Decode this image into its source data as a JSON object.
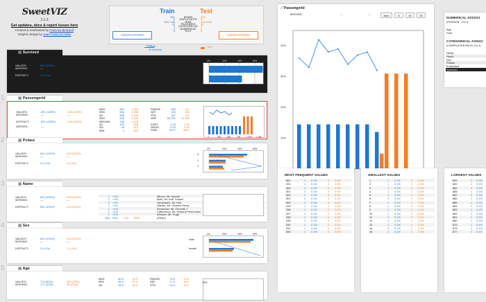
{
  "header": {
    "logo_text": "SweetVIZ",
    "version": "2.1.3",
    "updates_link": "Get updates, docs & report issues here",
    "credit_line1": "Created & maintained by",
    "credit_author": "Francois Bertrand",
    "credit_line2": "Graphic design by",
    "credit_designer": "Jean-Francois Hains"
  },
  "summary": {
    "train_title": "Train",
    "test_title": "Test",
    "rows": [
      {
        "train": "891",
        "label": "ROWS",
        "test": "418"
      },
      {
        "train": "0",
        "label": "DUPLICATES",
        "test": "0"
      },
      {
        "train": "329.7 kB",
        "label": "RAM",
        "test": "151.8 kB"
      },
      {
        "train": "12",
        "label": "FEATURES",
        "test": "11"
      },
      {
        "train": "5",
        "label": "CATEGORICAL",
        "test": "5"
      },
      {
        "train": "4",
        "label": "NUMERICAL",
        "test": "3"
      },
      {
        "train": "3",
        "label": "TEXT",
        "test": "3"
      }
    ],
    "assoc_button_train": "ASSOCIATIONS",
    "assoc_button_test": "ASSOCIATIONS",
    "legend_train": "Train",
    "legend_survived": "% Survived",
    "legend_test": "Test"
  },
  "colors": {
    "train": "#1f77d0",
    "test": "#f07e2a",
    "dark": "#1c1c1c"
  },
  "features": [
    {
      "index": "",
      "icon": "target-icon",
      "name": "Survived",
      "values_train": "891 (100%)",
      "values_test": "",
      "missing": "---",
      "distinct": "2 (<1%)",
      "chart": {
        "ticks": [
          "0%",
          "20%",
          "40%",
          "60%"
        ],
        "bars_train": [
          0.62,
          0.38
        ],
        "bars_test": []
      }
    },
    {
      "index": "1",
      "icon": "numeric-icon",
      "name": "PassengerId",
      "values_train": "891 (100%)",
      "values_test": "418 (100%)",
      "missing_train": "---",
      "missing_test": "---",
      "distinct_train": "891 (100%)",
      "distinct_test": "418 (100%)",
      "zeroes": "---",
      "stats_left": [
        {
          "k": "MAX",
          "t": "891",
          "s": "1,309"
        },
        {
          "k": "95%",
          "t": "846",
          "s": "1,288"
        },
        {
          "k": "Q3",
          "t": "668",
          "s": "1,205"
        },
        {
          "k": "AVG",
          "t": "446",
          "s": "1,100"
        },
        {
          "k": "MEDIAN",
          "t": "446",
          "s": "1,100"
        },
        {
          "k": "Q1",
          "t": "224",
          "s": "996"
        },
        {
          "k": "5%",
          "t": "45",
          "s": "913"
        },
        {
          "k": "MIN",
          "t": "1",
          "s": "892"
        }
      ],
      "stats_right": [
        {
          "k": "RANGE",
          "t": "890",
          "s": "417"
        },
        {
          "k": "IQR",
          "t": "445",
          "s": "208"
        },
        {
          "k": "STD",
          "t": "257",
          "s": "121"
        },
        {
          "k": "VAR",
          "t": "66,231",
          "s": "14,595"
        },
        {
          "k": "KURT.",
          "t": "-1.20",
          "s": "-1.20"
        },
        {
          "k": "SKEW",
          "t": "0.00",
          "s": "0.00"
        },
        {
          "k": "SUM",
          "t": "397K",
          "s": "460K"
        }
      ],
      "chart_ticks": [
        "0",
        "250",
        "500",
        "750",
        "1,000",
        "1,250"
      ]
    },
    {
      "index": "2",
      "icon": "category-icon",
      "name": "Pclass",
      "values_train": "891 (100%)",
      "values_test": "418 (100%)",
      "missing_train": "---",
      "missing_test": "---",
      "distinct_train": "3 (<1%)",
      "distinct_test": "3 (<1%)",
      "chart_ticks": [
        "0%",
        "20%",
        "40%",
        "60%"
      ],
      "categories": [
        "3",
        "1",
        "2"
      ]
    },
    {
      "index": "3",
      "icon": "text-icon",
      "name": "Name",
      "values_train": "891 (100%)",
      "values_test": "418 (100%)",
      "missing_train": "---",
      "missing_test": "---",
      "distinct_train": "891 (100%)",
      "distinct_test": "418 (100%)",
      "top_values": [
        {
          "n": "1",
          "p": "<1%",
          "name": "Minyor, Mr. August"
        },
        {
          "n": "1",
          "p": "<1%",
          "name": "Beth, Mr. Karl Trowell"
        },
        {
          "n": "1",
          "p": "<1%",
          "name": "Johanssen, Mr. Erik"
        },
        {
          "n": "1",
          "p": "<1%",
          "name": "Davies, Mr. Charles Henry"
        },
        {
          "n": "1",
          "p": "<1%",
          "name": "Kingsman, Mr. Thomas J"
        },
        {
          "n": "1",
          "p": "<1%",
          "name": "Cattermoul, Mr. Edward Pennington"
        },
        {
          "n": "1",
          "p": "<1%",
          "name": "Wooder, Mr. Hugh"
        },
        {
          "n": "884",
          "p": "99%",
          "test_n": "418",
          "test_p": "100%",
          "name": "(Other)"
        }
      ]
    },
    {
      "index": "4",
      "icon": "category-icon",
      "name": "Sex",
      "values_train": "891 (100%)",
      "values_test": "418 (100%)",
      "missing_train": "---",
      "missing_test": "---",
      "distinct_train": "2 (<1%)",
      "distinct_test": "2 (<1%)",
      "chart_ticks": [
        "0%",
        "20%",
        "40%",
        "60%"
      ],
      "categories": [
        "male",
        "female"
      ]
    },
    {
      "index": "5",
      "icon": "numeric-icon",
      "name": "Age",
      "values_train": "714 (80%)",
      "values_test": "332 (79%)",
      "missing_train": "177 (20%)",
      "missing_test": "86 (21%)",
      "stats_left": [
        {
          "k": "MAX",
          "t": "80.0",
          "s": "76.0"
        },
        {
          "k": "95%",
          "t": "56.0",
          "s": "57.0"
        },
        {
          "k": "Q3",
          "t": "38.0",
          "s": "39.0"
        }
      ],
      "stats_right": [
        {
          "k": "RANGE",
          "t": "79.6",
          "s": "75.8"
        },
        {
          "k": "IQR",
          "t": "17.9",
          "s": "18.0"
        },
        {
          "k": "STD",
          "t": "14.5",
          "s": "14.2"
        }
      ],
      "chart_first_tick": "60%"
    }
  ],
  "detail": {
    "title": "PassengerId",
    "missing_label": "MISSING:",
    "missing_train": "---",
    "missing_test": "---",
    "bin_buttons": [
      "Auto",
      "5",
      "15",
      "30"
    ],
    "chart_data": {
      "type": "bar",
      "x_ticks": [
        "0",
        "250",
        "500",
        "750",
        "1,000",
        "1,250"
      ],
      "y_ticks": [
        "40%",
        "30%",
        "20%",
        "10%"
      ],
      "ylim": [
        0,
        45
      ],
      "train_bars": [
        14.5,
        14.5,
        14.5,
        14.5,
        14.5,
        14.5,
        14.5,
        14.5,
        12.0
      ],
      "test_bars": [
        null,
        null,
        null,
        null,
        null,
        null,
        null,
        null,
        5.0,
        31.0,
        31.0,
        31.0
      ],
      "survived_line": [
        36,
        33,
        42,
        38,
        39,
        34,
        37,
        38,
        32
      ]
    }
  },
  "assoc_panel": {
    "title1": "NUMERICAL ASSOCI",
    "sub1": "(PEARSON, -1 to 1)",
    "items1": [
      "Age",
      "Fare"
    ],
    "title2": "CATEGORICAL ASSOC",
    "sub2": "(CORRELATION RATIO, 0 to 1)",
    "items2": [
      "SibSp",
      "Parch",
      "Sex",
      "Pclass",
      "Embarked",
      "Survived"
    ]
  },
  "tables": [
    {
      "title": "MOST FREQUENT VALUES",
      "rows": [
        {
          "v": "891",
          "t": "1",
          "tp": "0.1%",
          "s": "0",
          "sp": "0.0%"
        },
        {
          "v": "293",
          "t": "1",
          "tp": "0.1%",
          "s": "0",
          "sp": "0.0%"
        },
        {
          "v": "304",
          "t": "1",
          "tp": "0.1%",
          "s": "0",
          "sp": "0.0%"
        },
        {
          "v": "303",
          "t": "1",
          "tp": "0.1%",
          "s": "0",
          "sp": "0.0%"
        },
        {
          "v": "302",
          "t": "1",
          "tp": "0.1%",
          "s": "0",
          "sp": "0.0%"
        },
        {
          "v": "301",
          "t": "1",
          "tp": "0.1%",
          "s": "0",
          "sp": "0.0%"
        },
        {
          "v": "300",
          "t": "1",
          "tp": "0.1%",
          "s": "0",
          "sp": "0.0%"
        },
        {
          "v": "299",
          "t": "1",
          "tp": "0.1%",
          "s": "0",
          "sp": "0.0%"
        },
        {
          "v": "298",
          "t": "1",
          "tp": "0.1%",
          "s": "0",
          "sp": "0.0%"
        },
        {
          "v": "297",
          "t": "1",
          "tp": "0.1%",
          "s": "0",
          "sp": "0.0%"
        },
        {
          "v": "296",
          "t": "1",
          "tp": "0.1%",
          "s": "0",
          "sp": "0.0%"
        },
        {
          "v": "295",
          "t": "1",
          "tp": "0.1%",
          "s": "0",
          "sp": "0.0%"
        },
        {
          "v": "294",
          "t": "1",
          "tp": "0.1%",
          "s": "0",
          "sp": "0.0%"
        },
        {
          "v": "292",
          "t": "1",
          "tp": "0.1%",
          "s": "0",
          "sp": "0.0%"
        },
        {
          "v": "306",
          "t": "1",
          "tp": "0.1%",
          "s": "0",
          "sp": "0.0%"
        }
      ]
    },
    {
      "title": "SMALLEST VALUES",
      "rows": [
        {
          "v": "1",
          "t": "1",
          "tp": "0.1%",
          "s": "0",
          "sp": "0.0%"
        },
        {
          "v": "2",
          "t": "1",
          "tp": "0.1%",
          "s": "0",
          "sp": "0.0%"
        },
        {
          "v": "3",
          "t": "1",
          "tp": "0.1%",
          "s": "0",
          "sp": "0.0%"
        },
        {
          "v": "4",
          "t": "1",
          "tp": "0.1%",
          "s": "0",
          "sp": "0.0%"
        },
        {
          "v": "5",
          "t": "1",
          "tp": "0.1%",
          "s": "0",
          "sp": "0.0%"
        },
        {
          "v": "6",
          "t": "1",
          "tp": "0.1%",
          "s": "0",
          "sp": "0.0%"
        },
        {
          "v": "7",
          "t": "1",
          "tp": "0.1%",
          "s": "0",
          "sp": "0.0%"
        },
        {
          "v": "8",
          "t": "1",
          "tp": "0.1%",
          "s": "0",
          "sp": "0.0%"
        },
        {
          "v": "9",
          "t": "1",
          "tp": "0.1%",
          "s": "0",
          "sp": "0.0%"
        },
        {
          "v": "10",
          "t": "1",
          "tp": "0.1%",
          "s": "0",
          "sp": "0.0%"
        },
        {
          "v": "11",
          "t": "1",
          "tp": "0.1%",
          "s": "0",
          "sp": "0.0%"
        },
        {
          "v": "12",
          "t": "1",
          "tp": "0.1%",
          "s": "0",
          "sp": "0.0%"
        },
        {
          "v": "13",
          "t": "1",
          "tp": "0.1%",
          "s": "0",
          "sp": "0.0%"
        },
        {
          "v": "14",
          "t": "1",
          "tp": "0.1%",
          "s": "0",
          "sp": "0.0%"
        },
        {
          "v": "15",
          "t": "1",
          "tp": "0.1%",
          "s": "0",
          "sp": "0.0%"
        }
      ]
    },
    {
      "title": "LARGEST VALUES",
      "rows": [
        {
          "v": "891",
          "t": "1",
          "tp": "0.1%"
        },
        {
          "v": "890",
          "t": "1",
          "tp": "0.1%"
        },
        {
          "v": "889",
          "t": "1",
          "tp": "0.1%"
        },
        {
          "v": "888",
          "t": "1",
          "tp": "0.1%"
        },
        {
          "v": "887",
          "t": "1",
          "tp": "0.1%"
        },
        {
          "v": "886",
          "t": "1",
          "tp": "0.1%"
        },
        {
          "v": "885",
          "t": "1",
          "tp": "0.1%"
        },
        {
          "v": "884",
          "t": "1",
          "tp": "0.1%"
        },
        {
          "v": "883",
          "t": "1",
          "tp": "0.1%"
        },
        {
          "v": "882",
          "t": "1",
          "tp": "0.1%"
        },
        {
          "v": "881",
          "t": "1",
          "tp": "0.1%"
        },
        {
          "v": "880",
          "t": "1",
          "tp": "0.1%"
        },
        {
          "v": "879",
          "t": "1",
          "tp": "0.1%"
        },
        {
          "v": "878",
          "t": "1",
          "tp": "0.1%"
        },
        {
          "v": "877",
          "t": "1",
          "tp": "0.1%"
        }
      ]
    }
  ],
  "labels": {
    "values": "VALUES:",
    "missing": "MISSING:",
    "distinct": "DISTINCT:",
    "zeroes": "ZEROES:"
  }
}
